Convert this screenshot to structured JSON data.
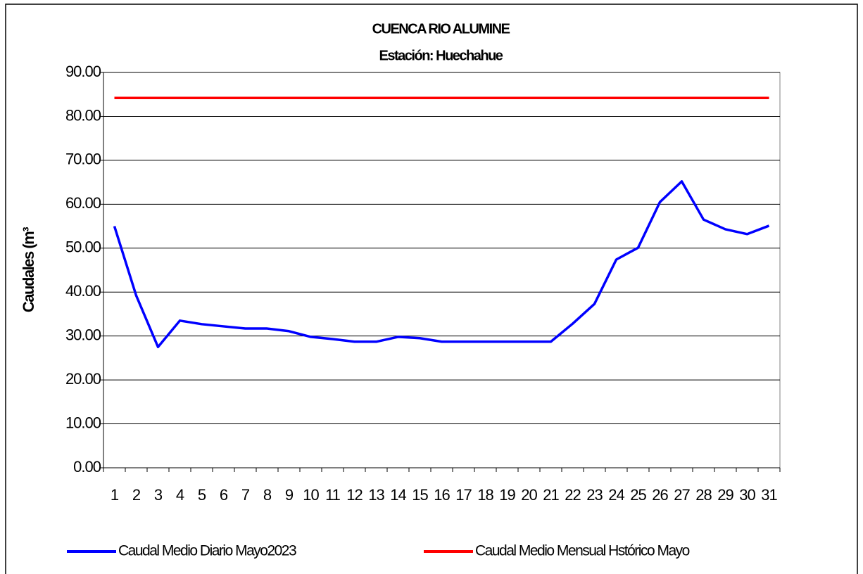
{
  "chart_data": {
    "type": "line",
    "title": "CUENCA RIO ALUMINE",
    "subtitle": "Estación: Huechahue",
    "y_label": "Caudales (m³",
    "categories": [
      "1",
      "2",
      "3",
      "4",
      "5",
      "6",
      "7",
      "8",
      "9",
      "10",
      "11",
      "12",
      "13",
      "14",
      "15",
      "16",
      "17",
      "18",
      "19",
      "20",
      "21",
      "22",
      "23",
      "24",
      "25",
      "26",
      "27",
      "28",
      "29",
      "30",
      "31"
    ],
    "series": [
      {
        "name": "Caudal Medio Diario Mayo2023",
        "color": "#0000ff",
        "values": [
          55.0,
          39.2,
          27.5,
          33.5,
          32.7,
          32.2,
          31.7,
          31.7,
          31.1,
          29.8,
          29.3,
          28.7,
          28.7,
          29.8,
          29.5,
          28.7,
          28.7,
          28.7,
          28.7,
          28.7,
          28.7,
          32.8,
          37.3,
          47.4,
          50.1,
          60.5,
          65.2,
          56.5,
          54.3,
          53.2,
          55.1
        ]
      },
      {
        "name": "Caudal Medio Mensual Hstórico Mayo",
        "color": "#ff0000",
        "values": [
          84.2,
          84.2,
          84.2,
          84.2,
          84.2,
          84.2,
          84.2,
          84.2,
          84.2,
          84.2,
          84.2,
          84.2,
          84.2,
          84.2,
          84.2,
          84.2,
          84.2,
          84.2,
          84.2,
          84.2,
          84.2,
          84.2,
          84.2,
          84.2,
          84.2,
          84.2,
          84.2,
          84.2,
          84.2,
          84.2,
          84.2
        ]
      }
    ],
    "ylim": [
      0,
      90
    ],
    "yticks": [
      {
        "value": 0,
        "label": "0.00"
      },
      {
        "value": 10,
        "label": "10.00"
      },
      {
        "value": 20,
        "label": "20.00"
      },
      {
        "value": 30,
        "label": "30.00"
      },
      {
        "value": 40,
        "label": "40.00"
      },
      {
        "value": 50,
        "label": "50.00"
      },
      {
        "value": 60,
        "label": "60.00"
      },
      {
        "value": 70,
        "label": "70.00"
      },
      {
        "value": 80,
        "label": "80.00"
      },
      {
        "value": 90,
        "label": "90.00"
      }
    ],
    "grid": true,
    "legend": "bottom"
  }
}
